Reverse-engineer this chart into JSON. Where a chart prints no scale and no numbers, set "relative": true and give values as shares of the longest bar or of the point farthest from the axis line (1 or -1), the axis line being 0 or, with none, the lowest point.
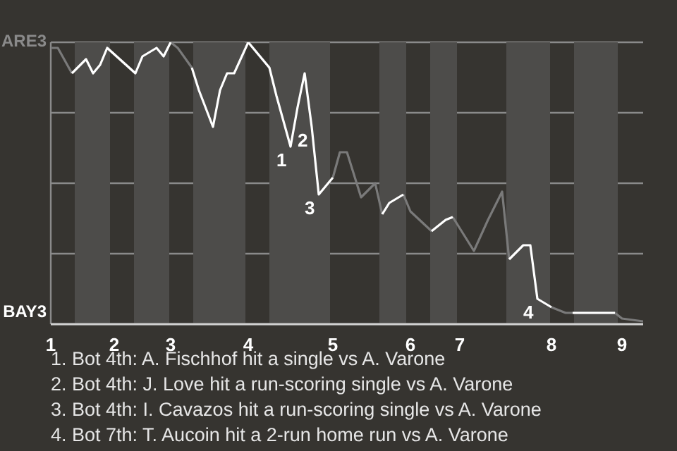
{
  "chart_data": {
    "type": "line",
    "relative": true,
    "categories": [
      "1",
      null,
      null,
      null,
      null,
      null,
      null,
      null,
      null,
      "2",
      null,
      null,
      null,
      null,
      null,
      null,
      null,
      "3",
      null,
      null,
      null,
      null,
      null,
      null,
      null,
      null,
      null,
      null,
      "4",
      null,
      null,
      null,
      null,
      null,
      null,
      null,
      null,
      null,
      null,
      null,
      "5",
      null,
      null,
      null,
      null,
      null,
      null,
      null,
      null,
      null,
      null,
      "6",
      null,
      null,
      null,
      null,
      null,
      null,
      "7",
      null,
      null,
      null,
      null,
      null,
      null,
      null,
      null,
      null,
      null,
      null,
      null,
      "8",
      null,
      null,
      null,
      null,
      null,
      null,
      null,
      null,
      null,
      "9",
      null,
      null,
      null
    ],
    "series": [
      {
        "color": "#7a7a7a",
        "values": [
          0.98,
          0.98,
          null,
          0.89,
          null,
          null,
          null,
          null,
          0.98,
          null,
          null,
          null,
          0.89,
          null,
          null,
          null,
          null,
          1.0,
          0.98,
          null,
          0.91,
          null,
          null,
          null,
          null,
          null,
          null,
          null,
          1.0,
          null,
          null,
          0.91,
          null,
          null,
          null,
          null,
          null,
          null,
          null,
          null,
          0.52,
          0.61,
          0.61,
          null,
          0.45,
          null,
          0.5,
          0.39,
          null,
          null,
          0.46,
          0.4,
          null,
          null,
          0.33,
          null,
          null,
          0.38,
          null,
          null,
          0.26,
          null,
          0.37,
          null,
          0.47,
          0.23,
          null,
          null,
          null,
          null,
          null,
          0.06,
          null,
          0.04,
          0.04,
          null,
          null,
          null,
          null,
          null,
          0.04,
          0.02,
          null,
          null,
          0.01
        ]
      },
      {
        "color": "#ffffff",
        "values": [
          null,
          null,
          null,
          0.89,
          null,
          0.94,
          0.89,
          0.92,
          0.98,
          null,
          null,
          null,
          0.89,
          0.95,
          null,
          0.98,
          0.95,
          1.0,
          null,
          null,
          0.91,
          0.83,
          null,
          0.7,
          0.83,
          0.89,
          0.89,
          null,
          1.0,
          null,
          null,
          0.91,
          0.81,
          null,
          0.63,
          0.77,
          0.89,
          0.7,
          0.46,
          null,
          0.52,
          null,
          null,
          null,
          null,
          null,
          null,
          0.39,
          0.43,
          null,
          0.46,
          null,
          null,
          null,
          0.33,
          null,
          0.37,
          0.38,
          null,
          null,
          null,
          null,
          null,
          null,
          null,
          0.23,
          null,
          0.28,
          0.28,
          0.09,
          null,
          0.06,
          null,
          null,
          0.04,
          null,
          null,
          null,
          null,
          null,
          0.04,
          null,
          null,
          null,
          null
        ]
      }
    ],
    "grid": "y",
    "annotations": [
      "ARE3",
      "BAY3",
      "1",
      "2",
      "3",
      "4",
      "1. Bot 4th: A. Fischhof hit a single vs A. Varone",
      "2. Bot 4th: J. Love hit a run-scoring single vs A. Varone",
      "3. Bot 4th: I. Cavazos hit a run-scoring single vs A. Varone",
      "4. Bot 7th: T. Aucoin hit a 2-run home run vs A. Varone"
    ]
  }
}
